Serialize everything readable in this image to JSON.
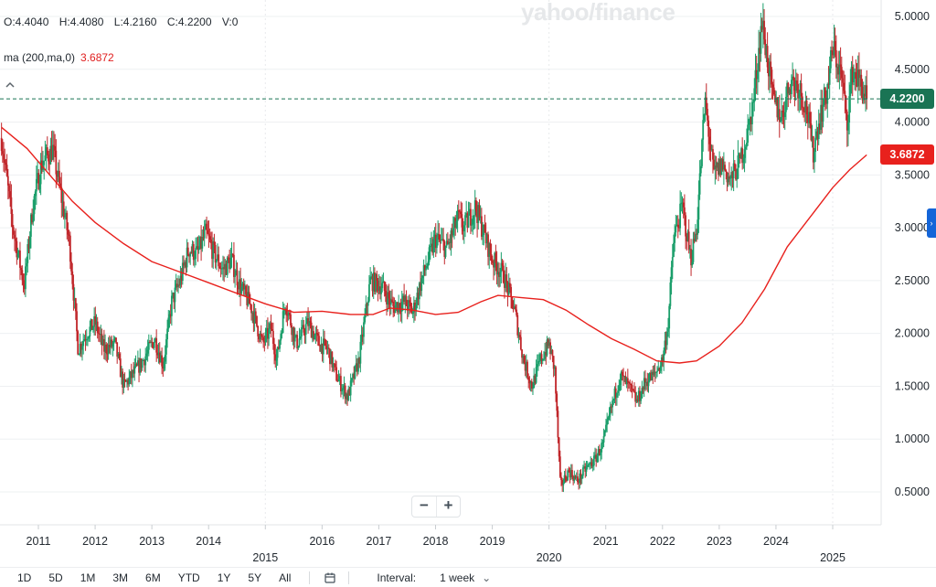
{
  "ohlc": {
    "open": "O:4.4040",
    "high": "H:4.4080",
    "low": "L:4.2160",
    "close": "C:4.2200",
    "volume": "V:0"
  },
  "indicator": {
    "label": "ma (200,ma,0)",
    "value": "3.6872"
  },
  "watermark": "yahoo/finance",
  "price_tags": {
    "last": "4.2200",
    "ma": "3.6872"
  },
  "colors": {
    "up": "#1a9e6a",
    "down": "#c0262a",
    "ma": "#e8211d",
    "last_line": "#1a7454"
  },
  "zoom": {
    "minus": "−",
    "plus": "+"
  },
  "toolbar": {
    "ranges": [
      "1D",
      "5D",
      "1M",
      "3M",
      "6M",
      "YTD",
      "1Y",
      "5Y",
      "All"
    ],
    "interval_label": "Interval:",
    "interval_value": "1 week"
  },
  "chart_data": {
    "type": "candlestick",
    "interval": "1 week",
    "y_ticks": [
      "5.0000",
      "4.5000",
      "4.0000",
      "3.5000",
      "3.0000",
      "2.5000",
      "2.0000",
      "1.5000",
      "1.0000",
      "0.5000"
    ],
    "ylim": [
      0.2,
      5.1
    ],
    "x_ticks": [
      "2011",
      "2012",
      "2013",
      "2014",
      "2015",
      "2016",
      "2017",
      "2018",
      "2019",
      "2020",
      "2021",
      "2022",
      "2023",
      "2024",
      "2025"
    ],
    "x_major_ticks": [
      "2015",
      "2020",
      "2025"
    ],
    "xlim": [
      2010.35,
      2025.65
    ],
    "last_close": 4.22,
    "ma_last": 3.6872,
    "price_path": [
      [
        2010.35,
        3.85
      ],
      [
        2010.55,
        3.0
      ],
      [
        2010.75,
        2.45
      ],
      [
        2010.9,
        3.2
      ],
      [
        2011.05,
        3.6
      ],
      [
        2011.25,
        3.75
      ],
      [
        2011.4,
        3.3
      ],
      [
        2011.55,
        2.85
      ],
      [
        2011.7,
        1.85
      ],
      [
        2011.85,
        2.0
      ],
      [
        2012.0,
        2.1
      ],
      [
        2012.15,
        1.85
      ],
      [
        2012.35,
        1.9
      ],
      [
        2012.5,
        1.5
      ],
      [
        2012.65,
        1.6
      ],
      [
        2012.85,
        1.75
      ],
      [
        2013.05,
        1.95
      ],
      [
        2013.2,
        1.7
      ],
      [
        2013.35,
        2.3
      ],
      [
        2013.5,
        2.5
      ],
      [
        2013.65,
        2.8
      ],
      [
        2013.8,
        2.75
      ],
      [
        2013.95,
        2.95
      ],
      [
        2014.1,
        2.75
      ],
      [
        2014.25,
        2.6
      ],
      [
        2014.4,
        2.7
      ],
      [
        2014.55,
        2.45
      ],
      [
        2014.75,
        2.25
      ],
      [
        2014.95,
        1.9
      ],
      [
        2015.1,
        2.05
      ],
      [
        2015.2,
        1.75
      ],
      [
        2015.35,
        2.3
      ],
      [
        2015.55,
        1.9
      ],
      [
        2015.75,
        2.1
      ],
      [
        2015.95,
        1.9
      ],
      [
        2016.1,
        1.85
      ],
      [
        2016.25,
        1.6
      ],
      [
        2016.45,
        1.4
      ],
      [
        2016.65,
        1.75
      ],
      [
        2016.85,
        2.5
      ],
      [
        2017.05,
        2.45
      ],
      [
        2017.25,
        2.25
      ],
      [
        2017.45,
        2.3
      ],
      [
        2017.6,
        2.2
      ],
      [
        2017.75,
        2.5
      ],
      [
        2018.0,
        2.9
      ],
      [
        2018.2,
        2.8
      ],
      [
        2018.4,
        3.1
      ],
      [
        2018.5,
        3.0
      ],
      [
        2018.7,
        3.2
      ],
      [
        2018.85,
        2.95
      ],
      [
        2019.0,
        2.7
      ],
      [
        2019.2,
        2.55
      ],
      [
        2019.4,
        2.2
      ],
      [
        2019.55,
        1.75
      ],
      [
        2019.7,
        1.5
      ],
      [
        2019.85,
        1.75
      ],
      [
        2020.0,
        1.9
      ],
      [
        2020.1,
        1.65
      ],
      [
        2020.2,
        0.55
      ],
      [
        2020.35,
        0.7
      ],
      [
        2020.5,
        0.6
      ],
      [
        2020.65,
        0.72
      ],
      [
        2020.8,
        0.8
      ],
      [
        2020.95,
        0.95
      ],
      [
        2021.1,
        1.3
      ],
      [
        2021.25,
        1.6
      ],
      [
        2021.4,
        1.5
      ],
      [
        2021.55,
        1.35
      ],
      [
        2021.7,
        1.55
      ],
      [
        2021.85,
        1.6
      ],
      [
        2022.0,
        1.75
      ],
      [
        2022.1,
        2.1
      ],
      [
        2022.2,
        2.9
      ],
      [
        2022.35,
        3.2
      ],
      [
        2022.5,
        2.7
      ],
      [
        2022.6,
        3.0
      ],
      [
        2022.75,
        4.2
      ],
      [
        2022.9,
        3.5
      ],
      [
        2023.05,
        3.6
      ],
      [
        2023.2,
        3.45
      ],
      [
        2023.35,
        3.6
      ],
      [
        2023.5,
        3.9
      ],
      [
        2023.6,
        4.2
      ],
      [
        2023.75,
        4.95
      ],
      [
        2023.85,
        4.6
      ],
      [
        2023.95,
        4.2
      ],
      [
        2024.1,
        4.05
      ],
      [
        2024.25,
        4.4
      ],
      [
        2024.4,
        4.35
      ],
      [
        2024.55,
        4.1
      ],
      [
        2024.65,
        3.7
      ],
      [
        2024.75,
        4.0
      ],
      [
        2024.9,
        4.3
      ],
      [
        2025.0,
        4.7
      ],
      [
        2025.15,
        4.45
      ],
      [
        2025.25,
        4.0
      ],
      [
        2025.35,
        4.5
      ],
      [
        2025.5,
        4.35
      ],
      [
        2025.6,
        4.22
      ]
    ],
    "ma_path": [
      [
        2010.35,
        3.95
      ],
      [
        2010.8,
        3.75
      ],
      [
        2011.2,
        3.5
      ],
      [
        2011.6,
        3.25
      ],
      [
        2012.0,
        3.05
      ],
      [
        2012.5,
        2.85
      ],
      [
        2013.0,
        2.68
      ],
      [
        2013.5,
        2.58
      ],
      [
        2014.0,
        2.48
      ],
      [
        2014.5,
        2.38
      ],
      [
        2015.0,
        2.28
      ],
      [
        2015.5,
        2.2
      ],
      [
        2016.0,
        2.21
      ],
      [
        2016.5,
        2.18
      ],
      [
        2016.9,
        2.18
      ],
      [
        2017.2,
        2.24
      ],
      [
        2017.6,
        2.22
      ],
      [
        2018.0,
        2.18
      ],
      [
        2018.4,
        2.2
      ],
      [
        2018.8,
        2.3
      ],
      [
        2019.1,
        2.36
      ],
      [
        2019.5,
        2.34
      ],
      [
        2019.9,
        2.32
      ],
      [
        2020.3,
        2.22
      ],
      [
        2020.7,
        2.08
      ],
      [
        2021.1,
        1.95
      ],
      [
        2021.5,
        1.85
      ],
      [
        2021.9,
        1.74
      ],
      [
        2022.3,
        1.72
      ],
      [
        2022.6,
        1.74
      ],
      [
        2023.0,
        1.88
      ],
      [
        2023.4,
        2.1
      ],
      [
        2023.8,
        2.42
      ],
      [
        2024.2,
        2.82
      ],
      [
        2024.6,
        3.1
      ],
      [
        2025.0,
        3.38
      ],
      [
        2025.3,
        3.55
      ],
      [
        2025.6,
        3.69
      ]
    ]
  }
}
